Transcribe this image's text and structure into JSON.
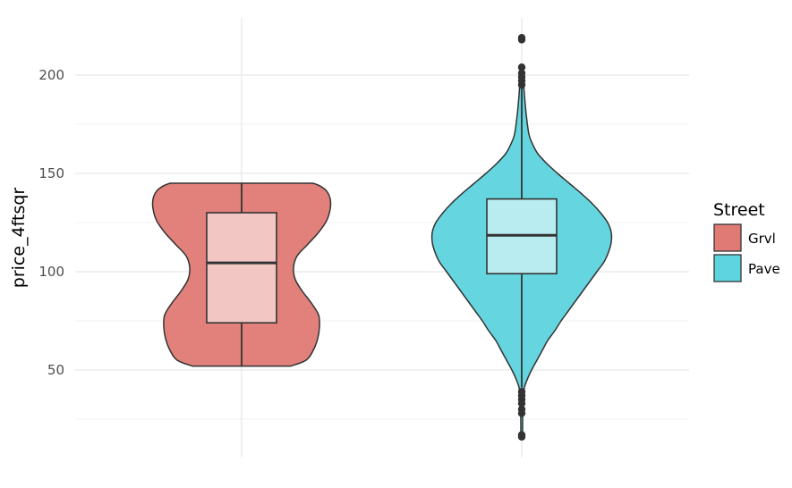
{
  "chart_data": {
    "type": "violin",
    "xlabel": "",
    "ylabel": "price_4ftsqr",
    "yticks": [
      50,
      100,
      150,
      200
    ],
    "ylim": [
      10,
      225
    ],
    "grid": true,
    "legend": {
      "title": "Street",
      "placement": "right",
      "entries": [
        {
          "label": "Grvl",
          "color": "#e07a74"
        },
        {
          "label": "Pave",
          "color": "#5dd4de"
        }
      ]
    },
    "series": [
      {
        "key": "Grvl",
        "color": "#e07a74",
        "box": {
          "q1": 74,
          "median": 104.5,
          "q3": 130,
          "whisker_low": 52,
          "whisker_high": 145
        },
        "outliers": [],
        "density": [
          {
            "y": 52,
            "w": 0.55
          },
          {
            "y": 55,
            "w": 0.72
          },
          {
            "y": 60,
            "w": 0.8
          },
          {
            "y": 66,
            "w": 0.85
          },
          {
            "y": 72,
            "w": 0.87
          },
          {
            "y": 78,
            "w": 0.86
          },
          {
            "y": 84,
            "w": 0.78
          },
          {
            "y": 90,
            "w": 0.68
          },
          {
            "y": 96,
            "w": 0.6
          },
          {
            "y": 102,
            "w": 0.58
          },
          {
            "y": 108,
            "w": 0.62
          },
          {
            "y": 114,
            "w": 0.74
          },
          {
            "y": 120,
            "w": 0.86
          },
          {
            "y": 126,
            "w": 0.95
          },
          {
            "y": 132,
            "w": 0.99
          },
          {
            "y": 137,
            "w": 0.99
          },
          {
            "y": 141,
            "w": 0.95
          },
          {
            "y": 143.5,
            "w": 0.88
          },
          {
            "y": 145,
            "w": 0.8
          }
        ]
      },
      {
        "key": "Pave",
        "color": "#5dd4de",
        "box": {
          "q1": 99,
          "median": 118.5,
          "q3": 137,
          "whisker_low": 41,
          "whisker_high": 203
        },
        "outliers": [
          16,
          17,
          28,
          30,
          33,
          35,
          37,
          39,
          195,
          197,
          199,
          201,
          204,
          218,
          219
        ],
        "density": [
          {
            "y": 16,
            "w": 0.01
          },
          {
            "y": 30,
            "w": 0.012
          },
          {
            "y": 40,
            "w": 0.025
          },
          {
            "y": 45,
            "w": 0.06
          },
          {
            "y": 50,
            "w": 0.11
          },
          {
            "y": 55,
            "w": 0.17
          },
          {
            "y": 60,
            "w": 0.23
          },
          {
            "y": 65,
            "w": 0.29
          },
          {
            "y": 70,
            "w": 0.37
          },
          {
            "y": 75,
            "w": 0.44
          },
          {
            "y": 80,
            "w": 0.52
          },
          {
            "y": 85,
            "w": 0.6
          },
          {
            "y": 90,
            "w": 0.68
          },
          {
            "y": 95,
            "w": 0.76
          },
          {
            "y": 100,
            "w": 0.84
          },
          {
            "y": 105,
            "w": 0.92
          },
          {
            "y": 110,
            "w": 0.97
          },
          {
            "y": 115,
            "w": 1.0
          },
          {
            "y": 120,
            "w": 1.0
          },
          {
            "y": 125,
            "w": 0.96
          },
          {
            "y": 130,
            "w": 0.88
          },
          {
            "y": 135,
            "w": 0.78
          },
          {
            "y": 140,
            "w": 0.66
          },
          {
            "y": 145,
            "w": 0.53
          },
          {
            "y": 150,
            "w": 0.4
          },
          {
            "y": 155,
            "w": 0.28
          },
          {
            "y": 160,
            "w": 0.18
          },
          {
            "y": 165,
            "w": 0.12
          },
          {
            "y": 170,
            "w": 0.08
          },
          {
            "y": 180,
            "w": 0.05
          },
          {
            "y": 190,
            "w": 0.03
          },
          {
            "y": 200,
            "w": 0.015
          },
          {
            "y": 204,
            "w": 0.006
          }
        ]
      }
    ]
  }
}
